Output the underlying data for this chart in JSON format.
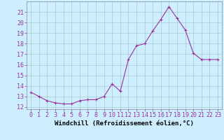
{
  "x": [
    0,
    1,
    2,
    3,
    4,
    5,
    6,
    7,
    8,
    9,
    10,
    11,
    12,
    13,
    14,
    15,
    16,
    17,
    18,
    19,
    20,
    21,
    22,
    23
  ],
  "y": [
    13.4,
    13.0,
    12.6,
    12.4,
    12.3,
    12.3,
    12.6,
    12.7,
    12.7,
    13.0,
    14.2,
    13.5,
    16.5,
    17.8,
    18.0,
    19.2,
    20.3,
    21.5,
    20.4,
    19.3,
    17.1,
    16.5,
    16.5,
    16.5
  ],
  "line_color": "#993399",
  "marker": "+",
  "marker_size": 3,
  "background_color": "#cceeff",
  "grid_color": "#aacccc",
  "xlabel": "Windchill (Refroidissement éolien,°C)",
  "xlabel_fontsize": 6.5,
  "tick_fontsize": 6,
  "ylim": [
    11.8,
    22.0
  ],
  "xlim": [
    -0.5,
    23.5
  ],
  "yticks": [
    12,
    13,
    14,
    15,
    16,
    17,
    18,
    19,
    20,
    21
  ],
  "xticks": [
    0,
    1,
    2,
    3,
    4,
    5,
    6,
    7,
    8,
    9,
    10,
    11,
    12,
    13,
    14,
    15,
    16,
    17,
    18,
    19,
    20,
    21,
    22,
    23
  ]
}
